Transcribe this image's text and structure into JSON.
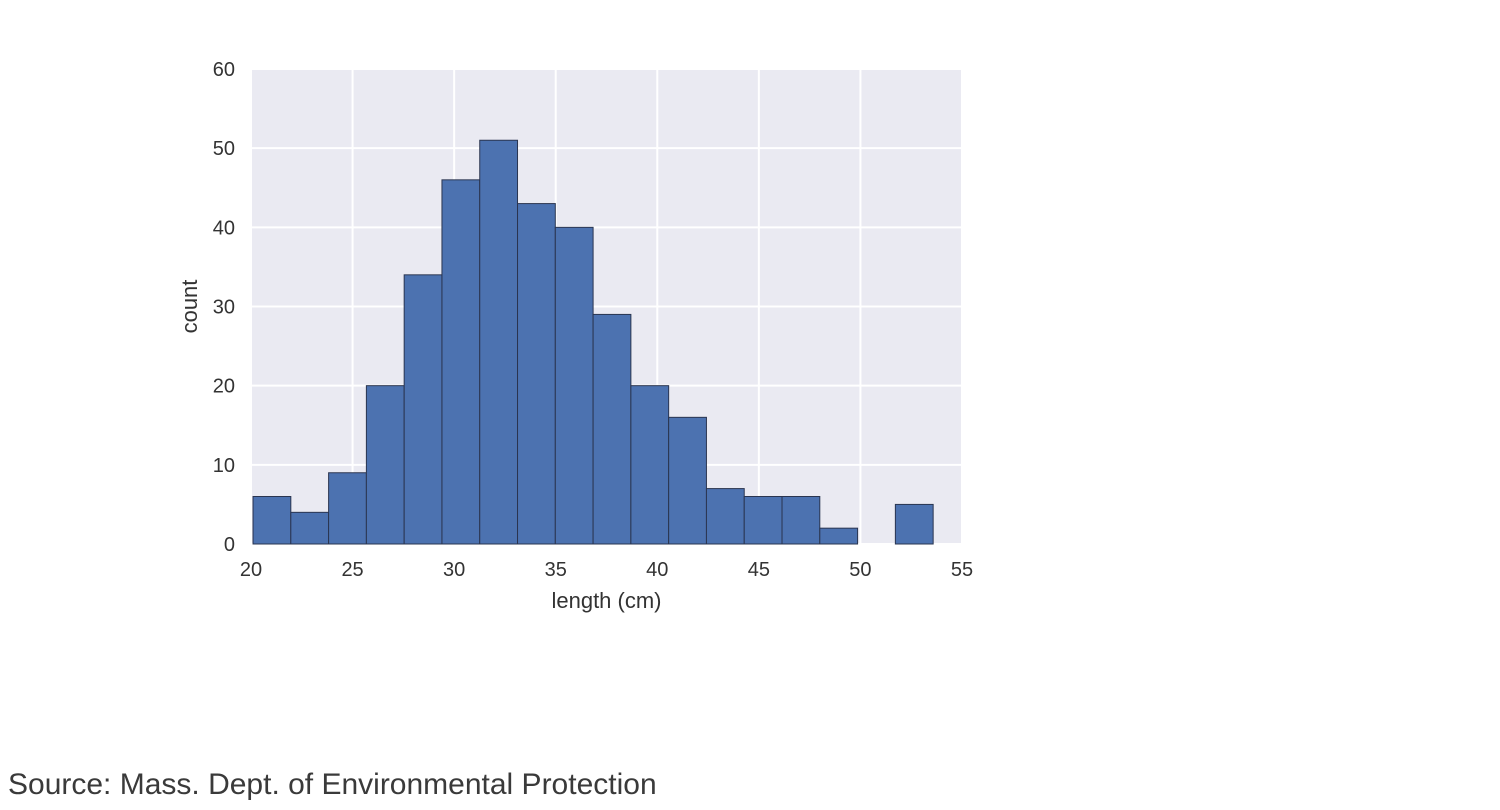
{
  "chart_data": {
    "type": "bar",
    "title": "",
    "xlabel": "length (cm)",
    "ylabel": "count",
    "xlim": [
      20,
      55
    ],
    "ylim": [
      0,
      60
    ],
    "xticks": [
      20,
      25,
      30,
      35,
      40,
      45,
      50,
      55
    ],
    "yticks": [
      0,
      10,
      20,
      30,
      40,
      50,
      60
    ],
    "grid": true,
    "bin_edges": [
      20.1,
      21.96,
      23.82,
      25.68,
      27.54,
      29.4,
      31.26,
      33.12,
      34.98,
      36.84,
      38.7,
      40.56,
      42.42,
      44.28,
      46.14,
      48.0,
      49.86,
      51.72,
      53.58
    ],
    "values": [
      6,
      4,
      9,
      20,
      34,
      46,
      51,
      43,
      40,
      29,
      20,
      16,
      7,
      6,
      6,
      2,
      0,
      5
    ]
  },
  "colors": {
    "plot_background": "#eaeaf2",
    "grid": "#ffffff",
    "bar_fill": "#4c72b0",
    "bar_edge": "#2a3550",
    "text": "#333333"
  },
  "source_note": "Source: Mass. Dept. of Environmental Protection"
}
